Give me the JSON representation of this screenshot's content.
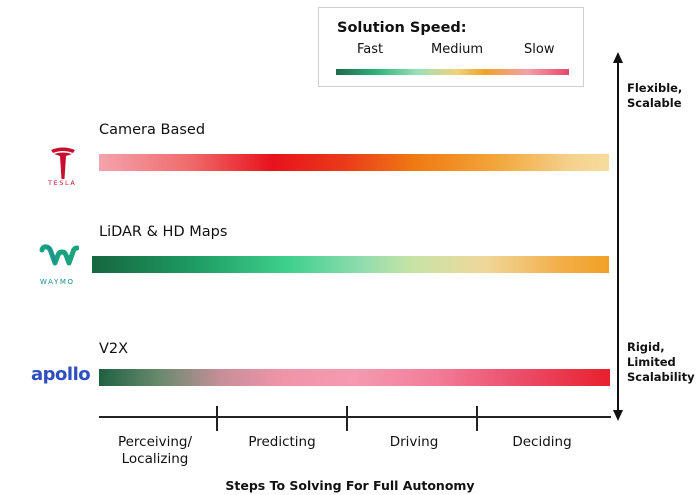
{
  "legend": {
    "title": "Solution Speed:",
    "fast": "Fast",
    "medium": "Medium",
    "slow": "Slow",
    "gradient_colors": [
      "#1f6b4b",
      "#2fb57a",
      "#9be0b8",
      "#f1d27a",
      "#f0a22a",
      "#f4a0a8",
      "#e8476a"
    ]
  },
  "rows": [
    {
      "label": "Camera Based",
      "logo_text": "TESLA",
      "logo_icon": "tesla-t-icon"
    },
    {
      "label": "LiDAR & HD Maps",
      "logo_text": "WAYMO",
      "logo_icon": "waymo-w-icon"
    },
    {
      "label": "V2X",
      "logo_text": "apollo",
      "logo_icon": "apollo-wordmark-icon"
    }
  ],
  "vertical_axis": {
    "top_label_line1": "Flexible,",
    "top_label_line2": "Scalable",
    "bottom_label_line1": "Rigid,",
    "bottom_label_line2": "Limited",
    "bottom_label_line3": "Scalability"
  },
  "steps": [
    {
      "line1": "Perceiving/",
      "line2": "Localizing"
    },
    {
      "line1": "Predicting"
    },
    {
      "line1": "Driving"
    },
    {
      "line1": "Deciding"
    }
  ],
  "x_axis_title": "Steps To Solving For Full Autonomy"
}
